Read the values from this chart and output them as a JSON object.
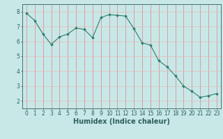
{
  "x": [
    0,
    1,
    2,
    3,
    4,
    5,
    6,
    7,
    8,
    9,
    10,
    11,
    12,
    13,
    14,
    15,
    16,
    17,
    18,
    19,
    20,
    21,
    22,
    23
  ],
  "y": [
    7.9,
    7.4,
    6.5,
    5.8,
    6.3,
    6.5,
    6.9,
    6.8,
    6.25,
    7.6,
    7.8,
    7.75,
    7.7,
    6.85,
    5.9,
    5.75,
    4.7,
    4.3,
    3.7,
    3.0,
    2.65,
    2.25,
    2.35,
    2.5
  ],
  "line_color": "#2e7d6e",
  "marker": "D",
  "marker_size": 2.0,
  "bg_color": "#c8e8e8",
  "grid_color_v": "#e08080",
  "grid_color_h": "#e8b8b8",
  "xlabel": "Humidex (Indice chaleur)",
  "xlim": [
    -0.5,
    23.5
  ],
  "ylim": [
    1.5,
    8.5
  ],
  "yticks": [
    2,
    3,
    4,
    5,
    6,
    7,
    8
  ],
  "xticks": [
    0,
    1,
    2,
    3,
    4,
    5,
    6,
    7,
    8,
    9,
    10,
    11,
    12,
    13,
    14,
    15,
    16,
    17,
    18,
    19,
    20,
    21,
    22,
    23
  ],
  "axis_color": "#2e5f5a",
  "tick_color": "#2e5f5a",
  "label_fontsize": 7.0,
  "tick_fontsize": 5.5
}
